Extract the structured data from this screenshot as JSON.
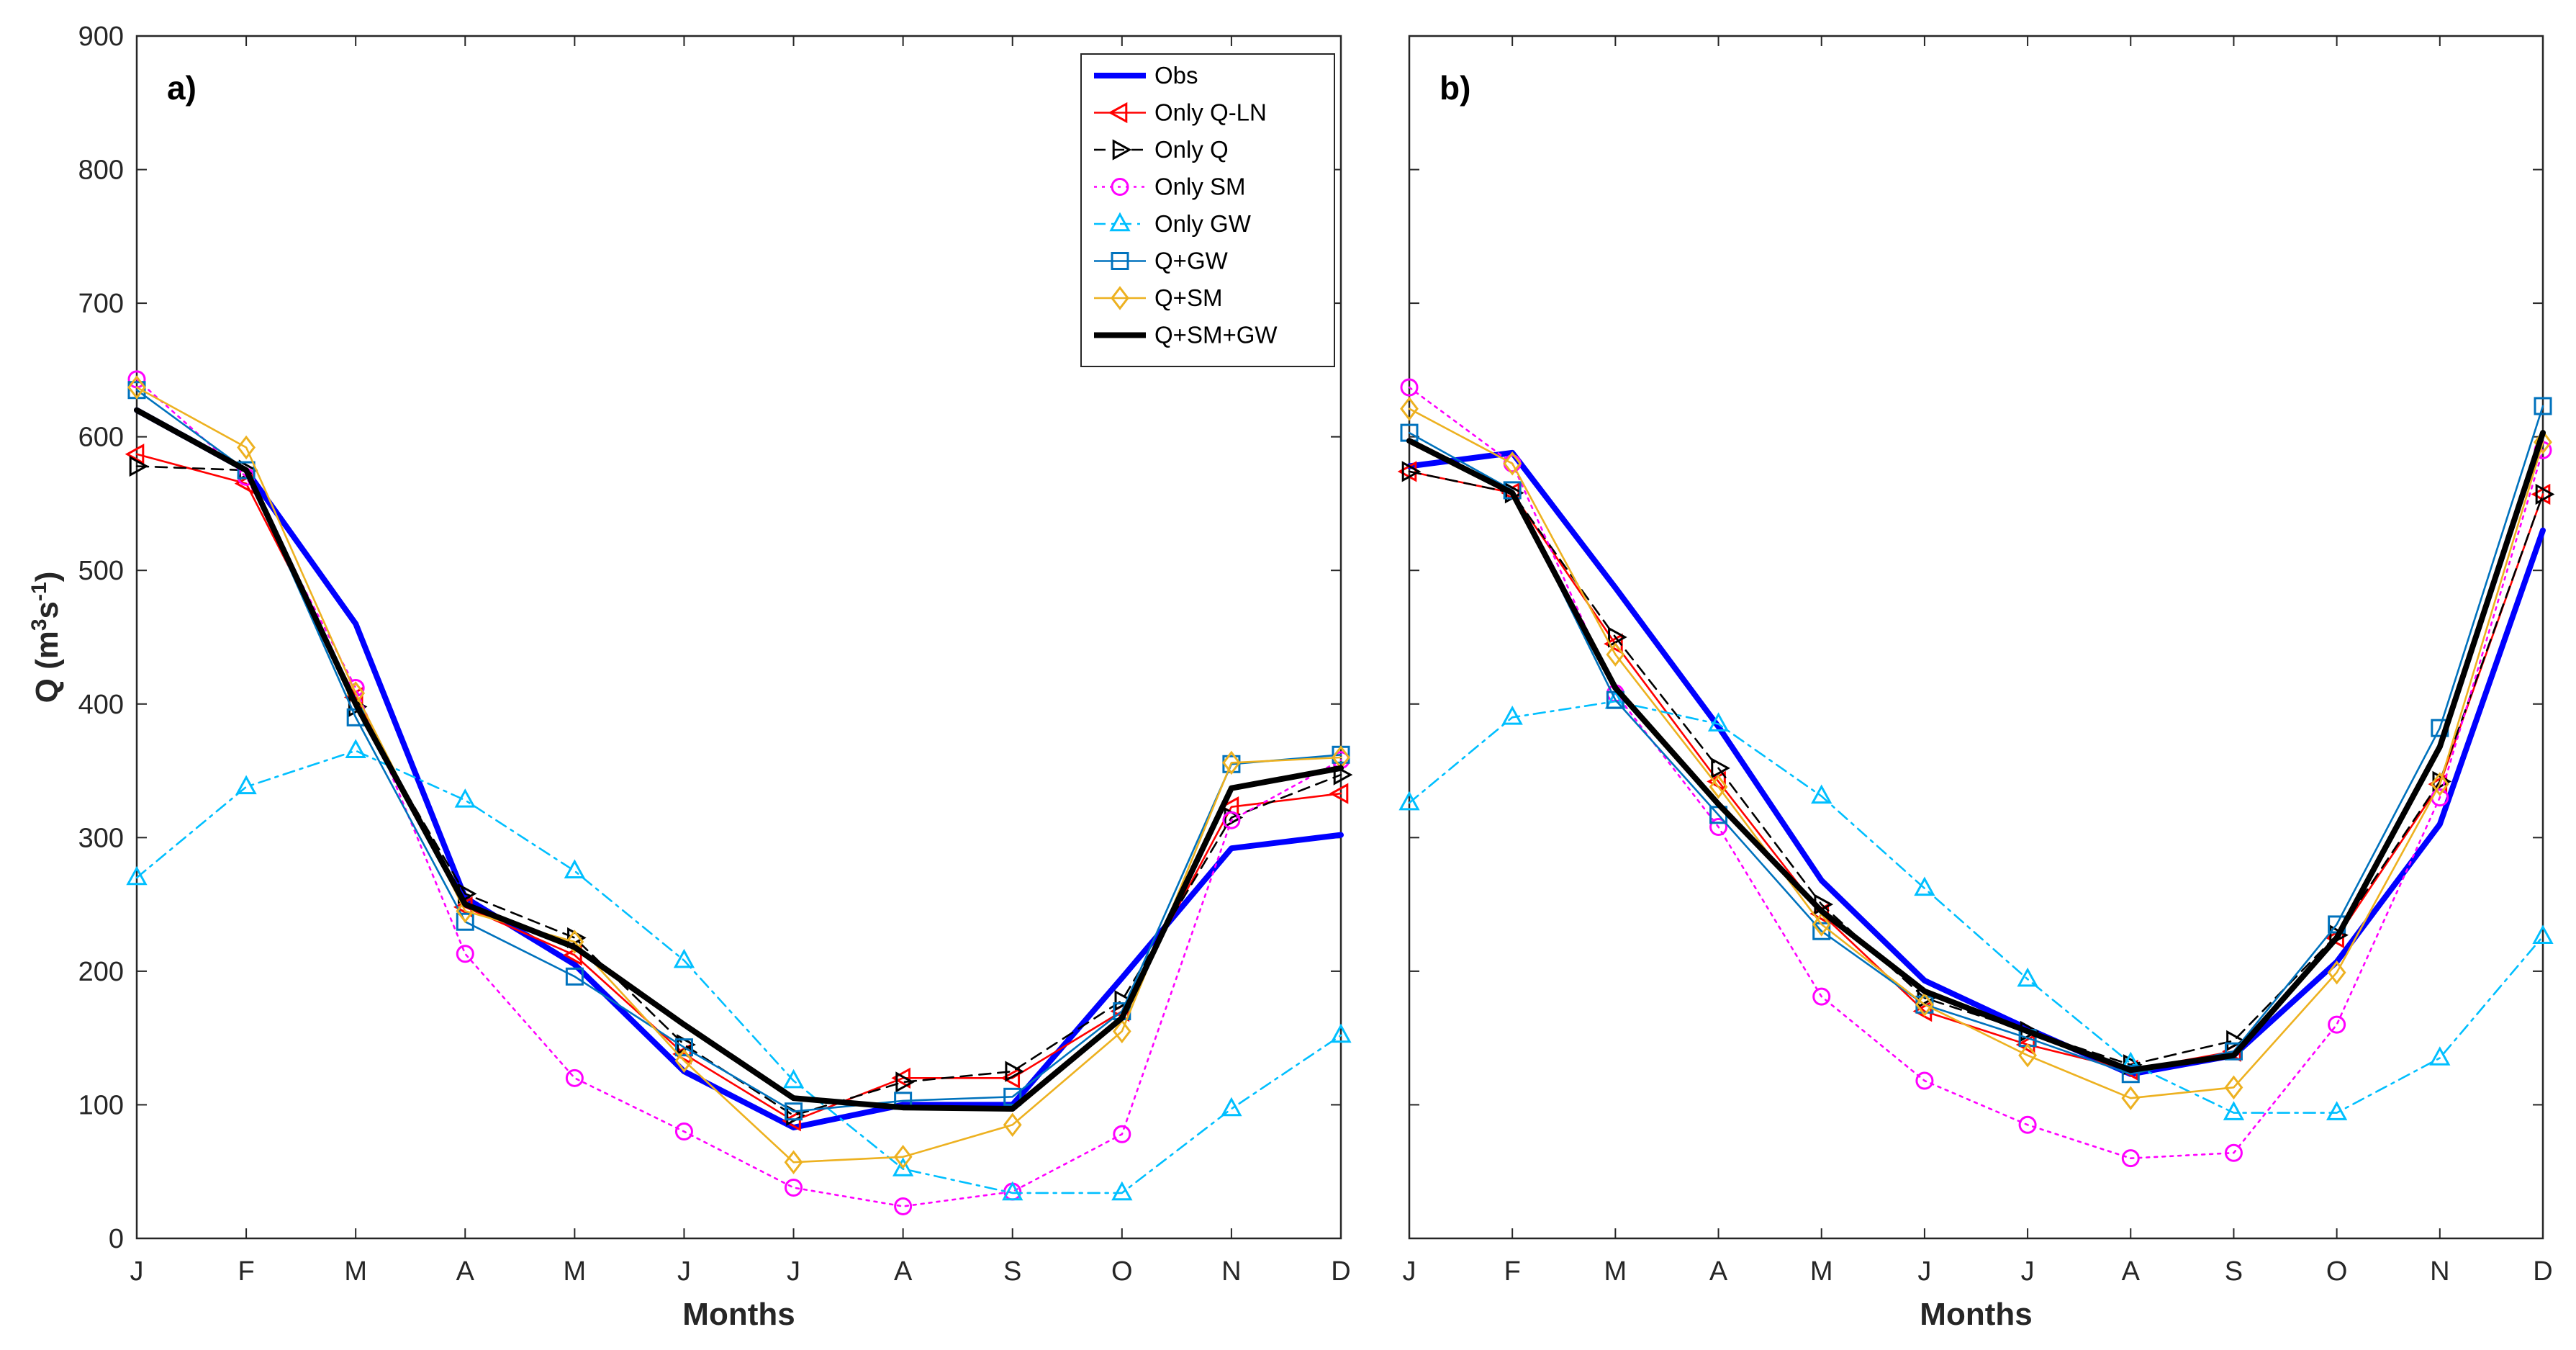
{
  "chart_data": [
    {
      "type": "line",
      "panel_label": "a)",
      "title": "",
      "xlabel": "Months",
      "ylabel_html": [
        "Q (m",
        "3",
        "s",
        "-1",
        ")"
      ],
      "categories": [
        "J",
        "F",
        "M",
        "A",
        "M",
        "J",
        "J",
        "A",
        "S",
        "O",
        "N",
        "D"
      ],
      "ylim": [
        0,
        900
      ],
      "yticks": [
        0,
        100,
        200,
        300,
        400,
        500,
        600,
        700,
        800,
        900
      ],
      "show_yticklabels": true,
      "legend_position": "top-right",
      "series": [
        {
          "name": "Obs",
          "color": "#0000ff",
          "style": "solid",
          "marker": "none",
          "bold": true,
          "values": [
            620,
            575,
            460,
            255,
            205,
            125,
            83,
            100,
            100,
            195,
            292,
            302
          ]
        },
        {
          "name": "Only Q-LN",
          "color": "#ff0000",
          "style": "solid",
          "marker": "tri-left",
          "values": [
            587,
            565,
            405,
            248,
            212,
            138,
            88,
            120,
            120,
            170,
            323,
            333
          ]
        },
        {
          "name": "Only Q",
          "color": "#000000",
          "style": "dashed",
          "marker": "tri-right",
          "values": [
            578,
            575,
            398,
            258,
            225,
            145,
            92,
            117,
            125,
            178,
            315,
            347
          ]
        },
        {
          "name": "Only SM",
          "color": "#ff00ff",
          "style": "dotted",
          "marker": "circle",
          "values": [
            643,
            570,
            412,
            213,
            120,
            80,
            38,
            24,
            35,
            78,
            313,
            358
          ]
        },
        {
          "name": "Only GW",
          "color": "#00bfff",
          "style": "dashdot",
          "marker": "tri-up",
          "values": [
            270,
            338,
            365,
            328,
            275,
            208,
            118,
            52,
            34,
            34,
            97,
            152
          ]
        },
        {
          "name": "Q+GW",
          "color": "#0072bd",
          "style": "solid",
          "marker": "square",
          "values": [
            635,
            575,
            390,
            237,
            196,
            143,
            95,
            103,
            106,
            170,
            355,
            362
          ]
        },
        {
          "name": "Q+SM",
          "color": "#edb120",
          "style": "solid",
          "marker": "diamond",
          "values": [
            637,
            592,
            408,
            245,
            222,
            133,
            57,
            61,
            85,
            155,
            356,
            360
          ]
        },
        {
          "name": "Q+SM+GW",
          "color": "#000000",
          "style": "solid",
          "marker": "none",
          "bold": true,
          "values": [
            620,
            575,
            400,
            250,
            218,
            160,
            105,
            98,
            97,
            165,
            337,
            352
          ]
        }
      ]
    },
    {
      "type": "line",
      "panel_label": "b)",
      "title": "",
      "xlabel": "Months",
      "categories": [
        "J",
        "F",
        "M",
        "A",
        "M",
        "J",
        "J",
        "A",
        "S",
        "O",
        "N",
        "D"
      ],
      "ylim": [
        0,
        900
      ],
      "yticks": [
        0,
        100,
        200,
        300,
        400,
        500,
        600,
        700,
        800,
        900
      ],
      "show_yticklabels": false,
      "series": [
        {
          "name": "Obs",
          "color": "#0000ff",
          "style": "solid",
          "marker": "none",
          "bold": true,
          "values": [
            578,
            588,
            487,
            383,
            268,
            193,
            157,
            123,
            137,
            207,
            310,
            530
          ]
        },
        {
          "name": "Only Q-LN",
          "color": "#ff0000",
          "style": "solid",
          "marker": "tri-left",
          "values": [
            574,
            558,
            445,
            342,
            243,
            170,
            145,
            126,
            140,
            225,
            340,
            557
          ]
        },
        {
          "name": "Only Q",
          "color": "#000000",
          "style": "dashed",
          "marker": "tri-right",
          "values": [
            574,
            558,
            450,
            352,
            250,
            180,
            155,
            130,
            148,
            227,
            342,
            557
          ]
        },
        {
          "name": "Only SM",
          "color": "#ff00ff",
          "style": "dotted",
          "marker": "circle",
          "values": [
            637,
            580,
            408,
            308,
            181,
            118,
            85,
            60,
            64,
            160,
            330,
            590
          ]
        },
        {
          "name": "Only GW",
          "color": "#00bfff",
          "style": "dashdot",
          "marker": "tri-up",
          "values": [
            326,
            390,
            402,
            385,
            331,
            262,
            194,
            131,
            94,
            94,
            135,
            226
          ]
        },
        {
          "name": "Q+GW",
          "color": "#0072bd",
          "style": "solid",
          "marker": "square",
          "values": [
            603,
            560,
            403,
            317,
            230,
            175,
            150,
            123,
            140,
            235,
            382,
            623
          ]
        },
        {
          "name": "Q+SM",
          "color": "#edb120",
          "style": "solid",
          "marker": "diamond",
          "values": [
            621,
            580,
            437,
            338,
            235,
            175,
            137,
            105,
            113,
            199,
            340,
            596
          ]
        },
        {
          "name": "Q+SM+GW",
          "color": "#000000",
          "style": "solid",
          "marker": "none",
          "bold": true,
          "values": [
            597,
            558,
            412,
            325,
            245,
            185,
            155,
            126,
            137,
            225,
            368,
            603
          ]
        }
      ]
    }
  ]
}
